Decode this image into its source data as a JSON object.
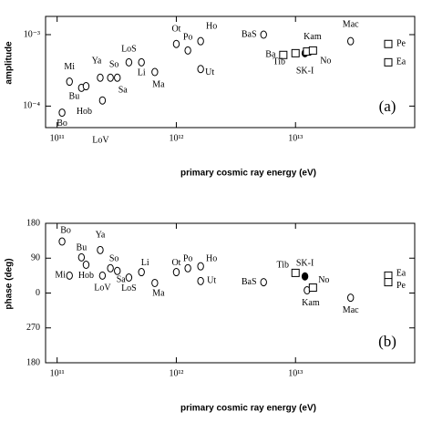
{
  "chart_data": [
    {
      "type": "scatter",
      "panel": "(a)",
      "y_label": "amplitude",
      "x_label": "primary cosmic ray energy (eV)",
      "xlog": true,
      "ylog": true,
      "xlim": [
        80000000000,
        100000000000000
      ],
      "xticks": [
        {
          "value": 100000000000,
          "label": "10¹¹"
        },
        {
          "value": 1000000000000,
          "label": "10¹²"
        },
        {
          "value": 10000000000000,
          "label": "10¹³"
        }
      ],
      "ylim": [
        5e-05,
        0.0018
      ],
      "yticks": [
        {
          "value": 0.0001,
          "label": "10⁻⁴"
        },
        {
          "value": 0.001,
          "label": "10⁻³"
        }
      ],
      "labels": [
        "Bo",
        "Mi",
        "Bu",
        "Hob",
        "Ya",
        "LoV",
        "So",
        "Sa",
        "LoS",
        "Li",
        "Ma",
        "Ot",
        "Po",
        "Ho",
        "Ut",
        "BaS",
        "Ba",
        "Tib",
        "SK-I",
        "Kam",
        "No",
        "Mac",
        "Pe",
        "Ea"
      ],
      "x": [
        110000000000,
        127000000000,
        160000000000,
        175000000000,
        230000000000,
        240000000000,
        280000000000,
        320000000000,
        400000000000,
        510000000000,
        660000000000,
        1000000000000,
        1250000000000,
        1600000000000,
        1600000000000,
        5400000000000,
        7900000000000,
        10000000000000,
        12000000000000,
        12500000000000,
        14000000000000,
        29000000000000,
        60000000000000,
        60000000000000
      ],
      "values": [
        8.1e-05,
        0.00022,
        0.00018,
        0.00019,
        0.00025,
        0.00012,
        0.00025,
        0.00025,
        0.00041,
        0.00041,
        0.0003,
        0.00074,
        0.0006,
        0.00081,
        0.00033,
        0.001,
        0.00052,
        0.00055,
        0.00055,
        0.00058,
        0.0006,
        0.00081,
        0.00074,
        0.00041
      ],
      "markers": [
        "circle",
        "circle",
        "circle",
        "circle",
        "circle",
        "circle",
        "circle",
        "circle",
        "circle",
        "circle",
        "circle",
        "circle",
        "circle",
        "circle",
        "circle",
        "circle",
        "square",
        "square",
        "filled",
        "square",
        "square",
        "circle",
        "square",
        "square"
      ]
    },
    {
      "type": "scatter",
      "panel": "(b)",
      "y_label": "phase (deg)",
      "x_label": "primary cosmic ray energy (eV)",
      "xlog": true,
      "ylog": false,
      "xlim": [
        80000000000,
        100000000000000
      ],
      "xticks": [
        {
          "value": 100000000000,
          "label": "10¹¹"
        },
        {
          "value": 1000000000000,
          "label": "10¹²"
        },
        {
          "value": 10000000000000,
          "label": "10¹³"
        }
      ],
      "ylim": [
        -180,
        180
      ],
      "yticks": [
        {
          "value": -180,
          "label": "180"
        },
        {
          "value": -90,
          "label": "270"
        },
        0,
        90,
        180
      ],
      "labels": [
        "Bo",
        "Mi",
        "Bu",
        "Hob",
        "Ya",
        "LoV",
        "So",
        "Sa",
        "LoS",
        "Li",
        "Ma",
        "Ot",
        "Po",
        "Ho",
        "Ut",
        "BaS",
        "Tib",
        "SK-I",
        "Kam",
        "No",
        "Mac",
        "Ea",
        "Pe"
      ],
      "x": [
        110000000000,
        127000000000,
        160000000000,
        175000000000,
        230000000000,
        240000000000,
        280000000000,
        320000000000,
        400000000000,
        510000000000,
        660000000000,
        1000000000000,
        1250000000000,
        1600000000000,
        1600000000000,
        5400000000000,
        10000000000000,
        12000000000000,
        12500000000000,
        14000000000000,
        29000000000000,
        60000000000000,
        60000000000000
      ],
      "values": [
        133,
        45,
        92,
        73,
        111,
        45,
        64,
        57,
        40,
        54,
        26,
        54,
        64,
        69,
        31,
        28,
        52,
        43,
        7,
        14,
        -12,
        45,
        28
      ],
      "markers": [
        "circle",
        "circle",
        "circle",
        "circle",
        "circle",
        "circle",
        "circle",
        "circle",
        "circle",
        "circle",
        "circle",
        "circle",
        "circle",
        "circle",
        "circle",
        "circle",
        "square",
        "filled",
        "circle",
        "square",
        "circle",
        "square",
        "square"
      ]
    }
  ]
}
